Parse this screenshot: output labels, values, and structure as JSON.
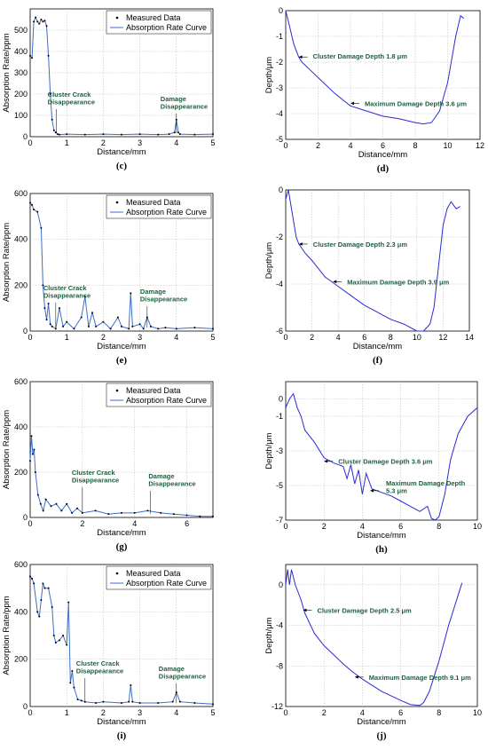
{
  "chart_data": [
    {
      "id": "c",
      "type": "line",
      "caption": "(c)",
      "xlabel": "Distance/mm",
      "ylabel": "Absorption Rate/ppm",
      "xlim": [
        0,
        5
      ],
      "ylim": [
        0,
        600
      ],
      "xticks": [
        "0",
        "1",
        "2",
        "3",
        "4",
        "5"
      ],
      "yticks": [
        "0",
        "100",
        "200",
        "300",
        "400",
        "500"
      ],
      "grid": true,
      "legend": {
        "placement": "top-right",
        "entries": [
          "Measured Data",
          "Absorption Rate Curve"
        ]
      },
      "series": [
        {
          "name": "Absorption Rate Curve",
          "x": [
            0,
            0.05,
            0.1,
            0.15,
            0.2,
            0.25,
            0.3,
            0.35,
            0.4,
            0.45,
            0.5,
            0.55,
            0.6,
            0.65,
            0.7,
            0.75,
            0.8,
            1.0,
            1.5,
            2.0,
            2.5,
            3.0,
            3.5,
            3.8,
            3.95,
            4.0,
            4.05,
            4.1,
            4.5,
            5.0
          ],
          "y": [
            380,
            370,
            540,
            560,
            540,
            530,
            550,
            540,
            545,
            520,
            380,
            200,
            80,
            30,
            20,
            12,
            10,
            12,
            10,
            12,
            10,
            12,
            10,
            12,
            20,
            80,
            20,
            12,
            10,
            12
          ]
        }
      ],
      "annotations": [
        {
          "text": [
            "Cluster Crack",
            "Disappearance"
          ],
          "x": 0.72
        },
        {
          "text": [
            "Damage",
            "Disappearance"
          ],
          "x": 4.0
        }
      ]
    },
    {
      "id": "d",
      "type": "line",
      "caption": "(d)",
      "xlabel": "Distance/mm",
      "ylabel": "Depth/μm",
      "xlim": [
        0,
        12
      ],
      "ylim": [
        -5,
        0
      ],
      "xticks": [
        "0",
        "2",
        "4",
        "6",
        "8",
        "10",
        "12"
      ],
      "yticks": [
        "-5",
        "-4",
        "-3",
        "-2",
        "-1",
        "0"
      ],
      "grid": true,
      "series": [
        {
          "x": [
            0,
            0.2,
            0.5,
            0.8,
            1.0,
            1.5,
            2.0,
            3.0,
            3.6,
            4.0,
            5.0,
            6.0,
            7.0,
            8.0,
            8.5,
            9.0,
            9.5,
            10.0,
            10.5,
            10.8,
            11.0
          ],
          "y": [
            0,
            -0.5,
            -1.3,
            -1.8,
            -2.0,
            -2.3,
            -2.6,
            -3.2,
            -3.5,
            -3.7,
            -3.9,
            -4.1,
            -4.2,
            -4.35,
            -4.4,
            -4.35,
            -3.9,
            -2.8,
            -1.0,
            -0.2,
            -0.3
          ]
        }
      ],
      "annotations": [
        {
          "text": "Cluster Damage Depth 1.8 μm",
          "x": 0.8,
          "y": -1.8
        },
        {
          "text": "Maximum Damage Depth 3.6 μm",
          "x": 4.0,
          "y": -3.6
        }
      ]
    },
    {
      "id": "e",
      "type": "line",
      "caption": "(e)",
      "xlabel": "Distance/mm",
      "ylabel": "Absorption Rate/ppm",
      "xlim": [
        0,
        5
      ],
      "ylim": [
        0,
        600
      ],
      "xticks": [
        "0",
        "1",
        "2",
        "3",
        "4",
        "5"
      ],
      "yticks": [
        "0",
        "200",
        "400",
        "600"
      ],
      "grid": true,
      "legend": {
        "placement": "top-right",
        "entries": [
          "Measured Data",
          "Absorption Rate Curve"
        ]
      },
      "series": [
        {
          "name": "Absorption Rate Curve",
          "x": [
            0,
            0.05,
            0.1,
            0.2,
            0.3,
            0.35,
            0.4,
            0.45,
            0.5,
            0.55,
            0.6,
            0.7,
            0.8,
            0.9,
            1.0,
            1.2,
            1.4,
            1.5,
            1.6,
            1.7,
            1.8,
            2.0,
            2.2,
            2.4,
            2.5,
            2.7,
            2.75,
            2.8,
            3.0,
            3.1,
            3.2,
            3.3,
            3.5,
            3.7,
            4.0,
            4.5,
            5.0
          ],
          "y": [
            560,
            550,
            530,
            520,
            450,
            200,
            100,
            50,
            120,
            30,
            20,
            10,
            100,
            20,
            40,
            10,
            60,
            150,
            20,
            80,
            20,
            40,
            10,
            60,
            20,
            10,
            165,
            20,
            30,
            10,
            60,
            20,
            10,
            15,
            10,
            15,
            10
          ]
        }
      ],
      "annotations": [
        {
          "text": [
            "Cluster Crack",
            "Disappearance"
          ],
          "x": 0.7
        },
        {
          "text": [
            "Damage",
            "Disappearance"
          ],
          "x": 3.2
        }
      ]
    },
    {
      "id": "f",
      "type": "line",
      "caption": "(f)",
      "xlabel": "Distance/mm",
      "ylabel": "Depth/μm",
      "xlim": [
        0,
        14
      ],
      "ylim": [
        -6,
        0
      ],
      "xticks": [
        "0",
        "2",
        "4",
        "6",
        "8",
        "10",
        "12",
        "14"
      ],
      "yticks": [
        "-6",
        "-4",
        "-2",
        "0"
      ],
      "grid": true,
      "series": [
        {
          "x": [
            0,
            0.2,
            0.5,
            0.8,
            1.0,
            1.5,
            2.0,
            3.0,
            3.5,
            4.0,
            5.0,
            6.0,
            7.0,
            8.0,
            9.0,
            10.0,
            10.5,
            11.0,
            11.3,
            11.6,
            12.0,
            12.3,
            12.6,
            13.0,
            13.3
          ],
          "y": [
            -0.4,
            0,
            -1.0,
            -2.0,
            -2.3,
            -2.7,
            -3.0,
            -3.7,
            -3.9,
            -4.1,
            -4.5,
            -4.9,
            -5.2,
            -5.5,
            -5.7,
            -6.0,
            -6.0,
            -5.7,
            -5.0,
            -3.5,
            -1.5,
            -0.8,
            -0.5,
            -0.8,
            -0.7
          ]
        }
      ],
      "annotations": [
        {
          "text": "Cluster Damage Depth 2.3 μm",
          "x": 1.0,
          "y": -2.3
        },
        {
          "text": "Maximum Damage Depth 3.9 μm",
          "x": 3.6,
          "y": -3.9
        }
      ]
    },
    {
      "id": "g",
      "type": "line",
      "caption": "(g)",
      "xlabel": "Distance/mm",
      "ylabel": "Absorption Rate/ppm",
      "xlim": [
        0,
        7
      ],
      "ylim": [
        0,
        600
      ],
      "xticks": [
        "0",
        "2",
        "4",
        "6"
      ],
      "yticks": [
        "0",
        "200",
        "400",
        "600"
      ],
      "grid": true,
      "legend": {
        "placement": "top-right",
        "entries": [
          "Measured Data",
          "Absorption Rate Curve"
        ]
      },
      "series": [
        {
          "name": "Absorption Rate Curve",
          "x": [
            0,
            0.05,
            0.1,
            0.15,
            0.2,
            0.3,
            0.4,
            0.5,
            0.6,
            0.8,
            1.0,
            1.2,
            1.4,
            1.6,
            1.8,
            2.0,
            2.5,
            3.0,
            3.5,
            4.0,
            4.5,
            5.0,
            5.5,
            6.0,
            6.5,
            7.0
          ],
          "y": [
            250,
            360,
            280,
            300,
            200,
            100,
            60,
            30,
            80,
            50,
            60,
            30,
            60,
            20,
            40,
            20,
            30,
            15,
            20,
            20,
            30,
            20,
            15,
            10,
            5,
            5
          ]
        }
      ],
      "annotations": [
        {
          "text": [
            "Cluster Crack",
            "Disappearance"
          ],
          "x": 2.0
        },
        {
          "text": [
            "Damage",
            "Disappearance"
          ],
          "x": 4.6
        }
      ]
    },
    {
      "id": "h",
      "type": "line",
      "caption": "(h)",
      "xlabel": "Distance/mm",
      "ylabel": "Depth/μm",
      "xlim": [
        0,
        10
      ],
      "ylim": [
        -7,
        1
      ],
      "xticks": [
        "0",
        "2",
        "4",
        "6",
        "8",
        "10"
      ],
      "yticks": [
        "-7",
        "-5",
        "-3",
        "-1",
        "0"
      ],
      "grid": true,
      "series": [
        {
          "x": [
            0,
            0.2,
            0.4,
            0.6,
            0.8,
            1.0,
            1.5,
            2.0,
            2.5,
            3.0,
            3.2,
            3.4,
            3.6,
            3.8,
            4.0,
            4.2,
            4.5,
            5.0,
            5.5,
            6.0,
            6.5,
            7.0,
            7.4,
            7.6,
            7.8,
            8.0,
            8.3,
            8.6,
            9.0,
            9.5,
            10.0
          ],
          "y": [
            -0.5,
            0,
            0.3,
            -0.5,
            -1.0,
            -1.8,
            -2.5,
            -3.4,
            -3.7,
            -3.9,
            -4.6,
            -3.8,
            -4.9,
            -4.1,
            -5.5,
            -4.3,
            -5.2,
            -5.4,
            -5.6,
            -5.9,
            -6.2,
            -6.5,
            -6.2,
            -6.9,
            -7.0,
            -6.8,
            -5.5,
            -3.5,
            -2.0,
            -1.0,
            -0.5
          ]
        }
      ],
      "annotations": [
        {
          "text": "Cluster Damage Depth 3.6 μm",
          "x": 2.0,
          "y": -3.6
        },
        {
          "text": [
            "Maximum Damage Depth",
            "5.3 μm"
          ],
          "x": 4.4,
          "y": -5.3
        }
      ]
    },
    {
      "id": "i",
      "type": "line",
      "caption": "(i)",
      "xlabel": "Distance/mm",
      "ylabel": "Absorption Rate/ppm",
      "xlim": [
        0,
        5
      ],
      "ylim": [
        0,
        600
      ],
      "xticks": [
        "0",
        "1",
        "2",
        "3",
        "4",
        "5"
      ],
      "yticks": [
        "0",
        "200",
        "400",
        "600"
      ],
      "grid": true,
      "legend": {
        "placement": "top-right",
        "entries": [
          "Measured Data",
          "Absorption Rate Curve"
        ]
      },
      "series": [
        {
          "name": "Absorption Rate Curve",
          "x": [
            0,
            0.05,
            0.1,
            0.2,
            0.25,
            0.3,
            0.35,
            0.4,
            0.5,
            0.6,
            0.65,
            0.7,
            0.8,
            0.9,
            1.0,
            1.05,
            1.1,
            1.15,
            1.2,
            1.3,
            1.4,
            1.5,
            1.8,
            2.0,
            2.5,
            2.7,
            2.75,
            2.8,
            3.0,
            3.5,
            3.9,
            4.0,
            4.1,
            4.5,
            5.0
          ],
          "y": [
            550,
            540,
            520,
            400,
            380,
            450,
            520,
            500,
            500,
            420,
            300,
            270,
            280,
            300,
            260,
            440,
            100,
            150,
            80,
            30,
            25,
            20,
            15,
            20,
            15,
            20,
            90,
            20,
            15,
            15,
            20,
            60,
            20,
            15,
            10
          ]
        }
      ],
      "annotations": [
        {
          "text": [
            "Cluster Crack",
            "Disappearance"
          ],
          "x": 1.5
        },
        {
          "text": [
            "Damage",
            "Disappearance"
          ],
          "x": 4.0
        }
      ]
    },
    {
      "id": "j",
      "type": "line",
      "caption": "(j)",
      "xlabel": "Distance/mm",
      "ylabel": "Depth/μm",
      "xlim": [
        0,
        10
      ],
      "ylim": [
        -12,
        2
      ],
      "xticks": [
        "0",
        "2",
        "4",
        "6",
        "8",
        "10"
      ],
      "yticks": [
        "-12",
        "-8",
        "-4",
        "0"
      ],
      "grid": true,
      "series": [
        {
          "x": [
            0,
            0.1,
            0.2,
            0.3,
            0.5,
            0.8,
            1.0,
            1.5,
            2.0,
            3.0,
            3.5,
            4.0,
            5.0,
            6.0,
            6.5,
            7.0,
            7.2,
            7.5,
            8.0,
            8.5,
            9.0,
            9.2
          ],
          "y": [
            0,
            1.5,
            0,
            1.5,
            0,
            -1.5,
            -2.8,
            -4.8,
            -6.0,
            -7.8,
            -8.6,
            -9.3,
            -10.5,
            -11.4,
            -11.8,
            -11.9,
            -11.6,
            -10.5,
            -7.5,
            -4.0,
            -1.0,
            0.2
          ]
        }
      ],
      "annotations": [
        {
          "text": "Cluster Damage Depth 2.5 μm",
          "x": 0.9,
          "y": -2.5
        },
        {
          "text": "Maximum Damage Depth 9.1 μm",
          "x": 3.6,
          "y": -9.1
        }
      ]
    }
  ]
}
